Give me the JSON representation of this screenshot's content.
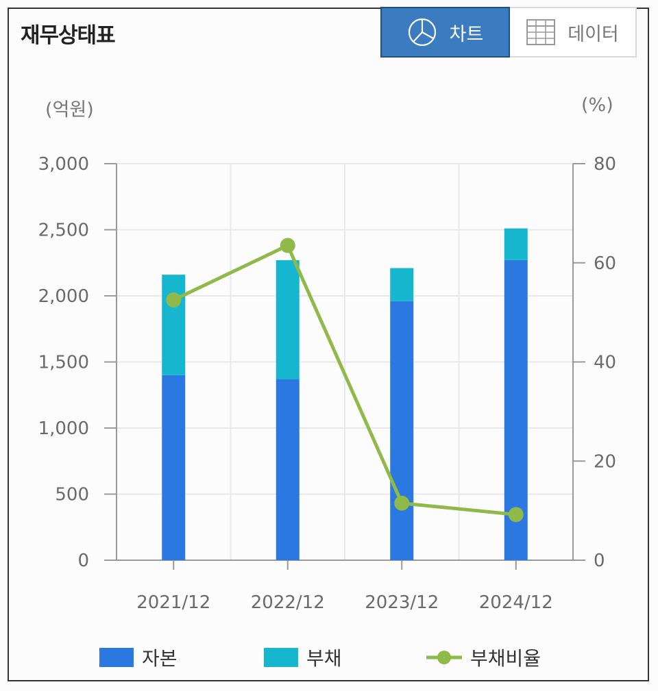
{
  "header": {
    "title": "재무상태표"
  },
  "tabs": [
    {
      "label": "차트",
      "icon": "pie-chart-icon",
      "active": true
    },
    {
      "label": "데이터",
      "icon": "table-grid-icon",
      "active": false
    }
  ],
  "units": {
    "left": "(억원)",
    "right": "(%)"
  },
  "colors": {
    "equity": "#2a78e0",
    "liability": "#17b6cf",
    "ratio": "#8fba4a"
  },
  "chart_data": {
    "type": "bar",
    "categories": [
      "2021/12",
      "2022/12",
      "2023/12",
      "2024/12"
    ],
    "series": [
      {
        "name": "자본",
        "type": "bar",
        "stack": "total",
        "axis": "left",
        "values": [
          1400,
          1370,
          1960,
          2270
        ]
      },
      {
        "name": "부채",
        "type": "bar",
        "stack": "total",
        "axis": "left",
        "values": [
          760,
          900,
          250,
          240
        ]
      },
      {
        "name": "부채비율",
        "type": "line",
        "axis": "right",
        "values": [
          52.5,
          63.5,
          11.5,
          9.2
        ]
      }
    ],
    "y_left": {
      "min": 0,
      "max": 3000,
      "ticks": [
        "0",
        "500",
        "1,000",
        "1,500",
        "2,000",
        "2,500",
        "3,000"
      ]
    },
    "y_right": {
      "min": 0,
      "max": 80,
      "ticks": [
        "0",
        "20",
        "40",
        "60",
        "80"
      ]
    },
    "grid": true,
    "legend_position": "bottom"
  }
}
